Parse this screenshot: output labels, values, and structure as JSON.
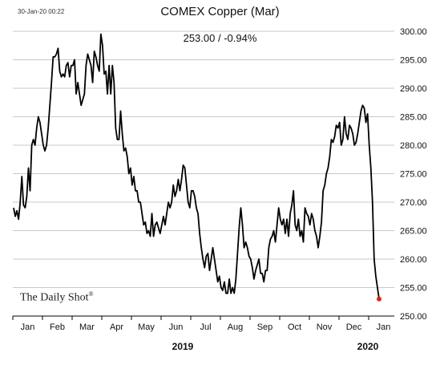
{
  "header": {
    "timestamp": "30-Jan-20 00:22",
    "title": "COMEX Copper (Mar)",
    "subtitle": "253.00  /  -0.94%",
    "brand": "The Daily Shot",
    "brand_mark": "®"
  },
  "colors": {
    "line": "#000000",
    "last_point": "#e0211c",
    "grid": "#c8c8c8"
  },
  "chart_data": {
    "type": "line",
    "title": "COMEX Copper (Mar)",
    "xlabel": "",
    "ylabel": "",
    "ylim": [
      250,
      300
    ],
    "yticks": [
      "300.00",
      "295.00",
      "290.00",
      "285.00",
      "280.00",
      "275.00",
      "270.00",
      "265.00",
      "260.00",
      "255.00",
      "250.00"
    ],
    "month_labels": [
      "Jan",
      "Feb",
      "Mar",
      "Apr",
      "May",
      "Jun",
      "Jul",
      "Aug",
      "Sep",
      "Oct",
      "Nov",
      "Dec",
      "Jan"
    ],
    "year_labels": [
      "2019",
      "2020"
    ],
    "grid": "horizontal",
    "last_value": 253.0,
    "series": [
      {
        "values": [
          269,
          267.5,
          268.5,
          267,
          270,
          274.5,
          269.5,
          269,
          271,
          276,
          272,
          280,
          281,
          280,
          283,
          285,
          284,
          282,
          280,
          279,
          280,
          283,
          287,
          291,
          295.5,
          295.5,
          296,
          297,
          293,
          292,
          292.5,
          292,
          294,
          294.5,
          292,
          294,
          294,
          295,
          289,
          291,
          289,
          287,
          288,
          289,
          294,
          296,
          295,
          294,
          291,
          296.5,
          295.5,
          294,
          293,
          299.5,
          297.5,
          292.5,
          293,
          289,
          294,
          289,
          294,
          291,
          283,
          281,
          281,
          286,
          282,
          279,
          279.5,
          278,
          275,
          276,
          273,
          274.5,
          272,
          272,
          270,
          270,
          268,
          266,
          266.5,
          264.5,
          265,
          264,
          268,
          264,
          266,
          266.5,
          265.5,
          264.5,
          266,
          267.5,
          266,
          268,
          270,
          269,
          270,
          273,
          271,
          272,
          274,
          272,
          274,
          276.5,
          276,
          273,
          270,
          269,
          272,
          272,
          271,
          269,
          268,
          264.5,
          262,
          260,
          258.5,
          260.5,
          261,
          258,
          260,
          262,
          260,
          258,
          256,
          257,
          255,
          254.5,
          256,
          254,
          254,
          256.5,
          254,
          255,
          254,
          256.5,
          261,
          265.5,
          269,
          266,
          262,
          263,
          262,
          260.5,
          260,
          258.5,
          256.5,
          258,
          259,
          260,
          257.5,
          257.5,
          256,
          258,
          258,
          262,
          263.5,
          264,
          265,
          263,
          266,
          269,
          267,
          266,
          267,
          264.5,
          267,
          264,
          268,
          269.5,
          272,
          266,
          265,
          267,
          264,
          265,
          263,
          269,
          268,
          267.5,
          266,
          268,
          267,
          265,
          264,
          262,
          264,
          266.5,
          272,
          273,
          275,
          276,
          278,
          281,
          280.5,
          281.5,
          283.5,
          283,
          284,
          280,
          281,
          285,
          282,
          281,
          283.5,
          283,
          282,
          280,
          280.5,
          282,
          284,
          286,
          287,
          286.5,
          284,
          285.5,
          280,
          276,
          270,
          260,
          257,
          255,
          253
        ]
      }
    ]
  }
}
